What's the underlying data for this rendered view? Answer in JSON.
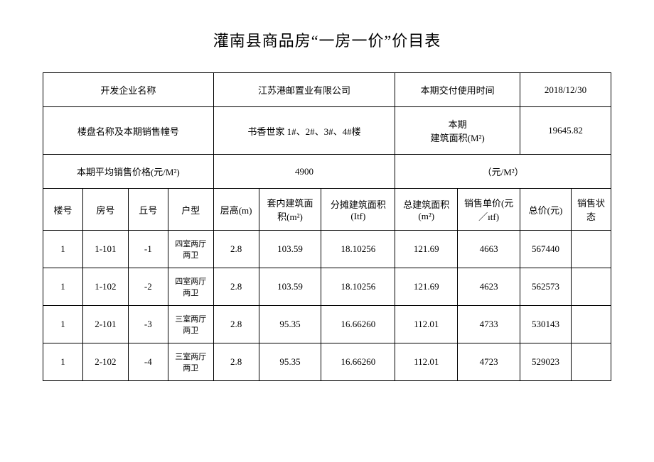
{
  "title": "灌南县商品房“一房一价”价目表",
  "info": {
    "developer_label": "开发企业名称",
    "developer_value": "江苏港邮置业有限公司",
    "delivery_label": "本期交付使用时间",
    "delivery_value": "2018/12/30",
    "project_label": "楼盘名称及本期销售幢号",
    "project_value": "书香世家 1#、2#、3#、4#楼",
    "area_label": "本期",
    "area_label2": "建筑面积(M²)",
    "area_value": "19645.82",
    "avg_price_label": "本期平均销售价格(元/M²)",
    "avg_price_value": "4900",
    "unit_label": "（元/M²）"
  },
  "columns": {
    "building": "楼号",
    "room": "房号",
    "qiu": "丘号",
    "type": "户型",
    "height": "层高(m)",
    "inner_area": "套内建筑面积(m²)",
    "shared_area": "分摊建筑面积(Itf)",
    "total_area": "总建筑面积(m²)",
    "unit_price": "销售单价(元／ıtf)",
    "total_price": "总价(元)",
    "status": "销售状态"
  },
  "rows": [
    {
      "building": "1",
      "room": "1-101",
      "qiu": "-1",
      "type": "四室两厅两卫",
      "height": "2.8",
      "inner_area": "103.59",
      "shared_area": "18.10256",
      "total_area": "121.69",
      "unit_price": "4663",
      "total_price": "567440",
      "status": ""
    },
    {
      "building": "1",
      "room": "1-102",
      "qiu": "-2",
      "type": "四室两厅两卫",
      "height": "2.8",
      "inner_area": "103.59",
      "shared_area": "18.10256",
      "total_area": "121.69",
      "unit_price": "4623",
      "total_price": "562573",
      "status": ""
    },
    {
      "building": "1",
      "room": "2-101",
      "qiu": "-3",
      "type": "三室两厅两卫",
      "height": "2.8",
      "inner_area": "95.35",
      "shared_area": "16.66260",
      "total_area": "112.01",
      "unit_price": "4733",
      "total_price": "530143",
      "status": ""
    },
    {
      "building": "1",
      "room": "2-102",
      "qiu": "-4",
      "type": "三室两厅两卫",
      "height": "2.8",
      "inner_area": "95.35",
      "shared_area": "16.66260",
      "total_area": "112.01",
      "unit_price": "4723",
      "total_price": "529023",
      "status": ""
    }
  ]
}
